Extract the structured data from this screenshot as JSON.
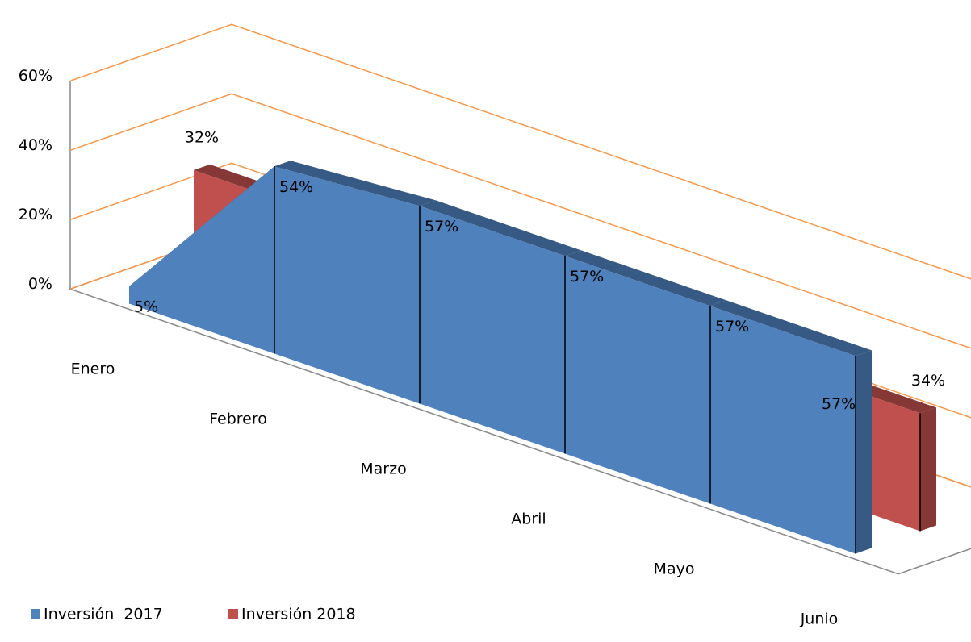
{
  "chart_data": {
    "type": "area3d",
    "categories": [
      "Enero",
      "Febrero",
      "Marzo",
      "Abril",
      "Mayo",
      "Junio"
    ],
    "series": [
      {
        "name": "Inversión  2017",
        "color": "#4f81bd",
        "values": [
          5,
          54,
          57,
          57,
          57,
          57
        ],
        "value_labels": [
          "5%",
          "54%",
          "57%",
          "57%",
          "57%",
          "57%"
        ]
      },
      {
        "name": "Inversión 2018",
        "color": "#c0504d",
        "values": [
          32,
          32,
          32,
          32,
          34,
          34
        ],
        "value_labels": [
          "32%",
          "32%",
          "32%",
          "32%",
          "34%",
          "34%"
        ]
      }
    ],
    "ylim": [
      0,
      60
    ],
    "yticks": [
      {
        "value": 0,
        "label": "0%"
      },
      {
        "value": 20,
        "label": "20%"
      },
      {
        "value": 40,
        "label": "40%"
      },
      {
        "value": 60,
        "label": "60%"
      }
    ],
    "grid": true,
    "grid_color": "#f79646",
    "legend": "bottom-left"
  }
}
